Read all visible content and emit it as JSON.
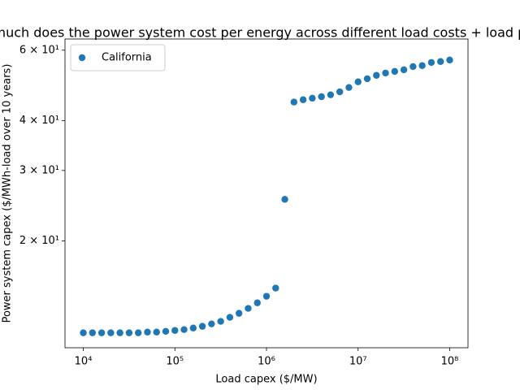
{
  "chart_data": {
    "type": "scatter",
    "title": "How much does the power system cost per energy across different load costs + load profiles?",
    "xlabel": "Load capex ($/MW)",
    "ylabel": "Power system capex ($/MWh-load over 10 years)",
    "xscale": "log",
    "yscale": "log",
    "xlim": [
      6309.6,
      158489319
    ],
    "ylim": [
      10.8,
      64
    ],
    "xticks": [
      {
        "value": 10000,
        "label": "10⁴"
      },
      {
        "value": 100000,
        "label": "10⁵"
      },
      {
        "value": 1000000,
        "label": "10⁶"
      },
      {
        "value": 10000000,
        "label": "10⁷"
      },
      {
        "value": 100000000,
        "label": "10⁸"
      }
    ],
    "yticks": [
      {
        "value": 20,
        "label": "2 × 10¹"
      },
      {
        "value": 30,
        "label": "3 × 10¹"
      },
      {
        "value": 40,
        "label": "4 × 10¹"
      },
      {
        "value": 60,
        "label": "6 × 10¹"
      }
    ],
    "legend": "upper left",
    "series": [
      {
        "name": "California",
        "color": "#1f77b4",
        "x": [
          10000,
          12589,
          15849,
          19953,
          25119,
          31623,
          39811,
          50119,
          63096,
          79433,
          100000,
          125893,
          158489,
          199526,
          251189,
          316228,
          398107,
          501187,
          630957,
          794328,
          1000000,
          1258925,
          1584893,
          1995262,
          2511886,
          3162278,
          3981072,
          5011872,
          6309573,
          7943282,
          10000000,
          12589254,
          15848932,
          19952623,
          25118864,
          31622777,
          39810717,
          50118723,
          63095734,
          79432823,
          100000000
        ],
        "values": [
          11.77,
          11.77,
          11.77,
          11.77,
          11.77,
          11.77,
          11.77,
          11.82,
          11.82,
          11.87,
          11.93,
          11.99,
          12.1,
          12.22,
          12.39,
          12.57,
          12.87,
          13.17,
          13.55,
          13.99,
          14.53,
          15.23,
          25.4,
          44.5,
          45.1,
          45.5,
          45.9,
          46.4,
          47.2,
          48.4,
          50.0,
          50.9,
          51.9,
          52.6,
          53.1,
          53.6,
          54.6,
          54.9,
          55.9,
          56.2,
          56.7
        ]
      }
    ]
  }
}
